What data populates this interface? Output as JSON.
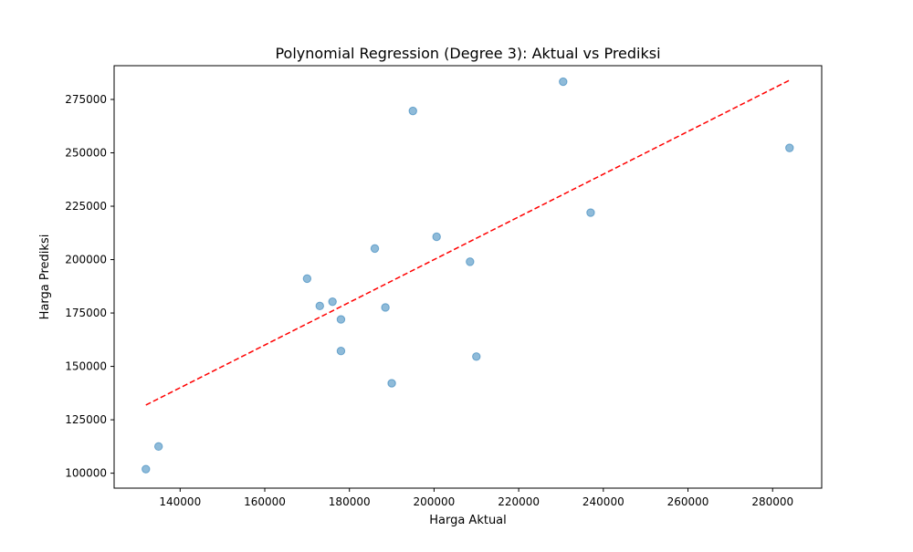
{
  "chart_data": {
    "type": "scatter",
    "title": "Polynomial Regression (Degree 3): Aktual vs Prediksi",
    "xlabel": "Harga Aktual",
    "ylabel": "Harga Prediksi",
    "xlim": [
      124400,
      291600
    ],
    "ylim": [
      93000,
      290800
    ],
    "x_ticks": [
      140000,
      160000,
      180000,
      200000,
      220000,
      240000,
      260000,
      280000
    ],
    "y_ticks": [
      100000,
      125000,
      150000,
      175000,
      200000,
      225000,
      250000,
      275000
    ],
    "grid": false,
    "points": [
      {
        "x": 131900,
        "y": 101900
      },
      {
        "x": 134900,
        "y": 112500
      },
      {
        "x": 170000,
        "y": 191100
      },
      {
        "x": 173000,
        "y": 178300
      },
      {
        "x": 176000,
        "y": 180300
      },
      {
        "x": 178000,
        "y": 172000
      },
      {
        "x": 178000,
        "y": 157200
      },
      {
        "x": 186000,
        "y": 205200
      },
      {
        "x": 188500,
        "y": 177600
      },
      {
        "x": 190000,
        "y": 142100
      },
      {
        "x": 195000,
        "y": 269600
      },
      {
        "x": 200600,
        "y": 210700
      },
      {
        "x": 208500,
        "y": 199000
      },
      {
        "x": 210000,
        "y": 154600
      },
      {
        "x": 230500,
        "y": 283300
      },
      {
        "x": 237000,
        "y": 222000
      },
      {
        "x": 284000,
        "y": 252300
      }
    ],
    "reference_line": {
      "x": [
        131900,
        284000
      ],
      "y": [
        131900,
        284000
      ],
      "style": "dashed"
    },
    "colors": {
      "points": "#1f77b4",
      "reference_line": "#ff0000",
      "axes": "#000000"
    }
  }
}
